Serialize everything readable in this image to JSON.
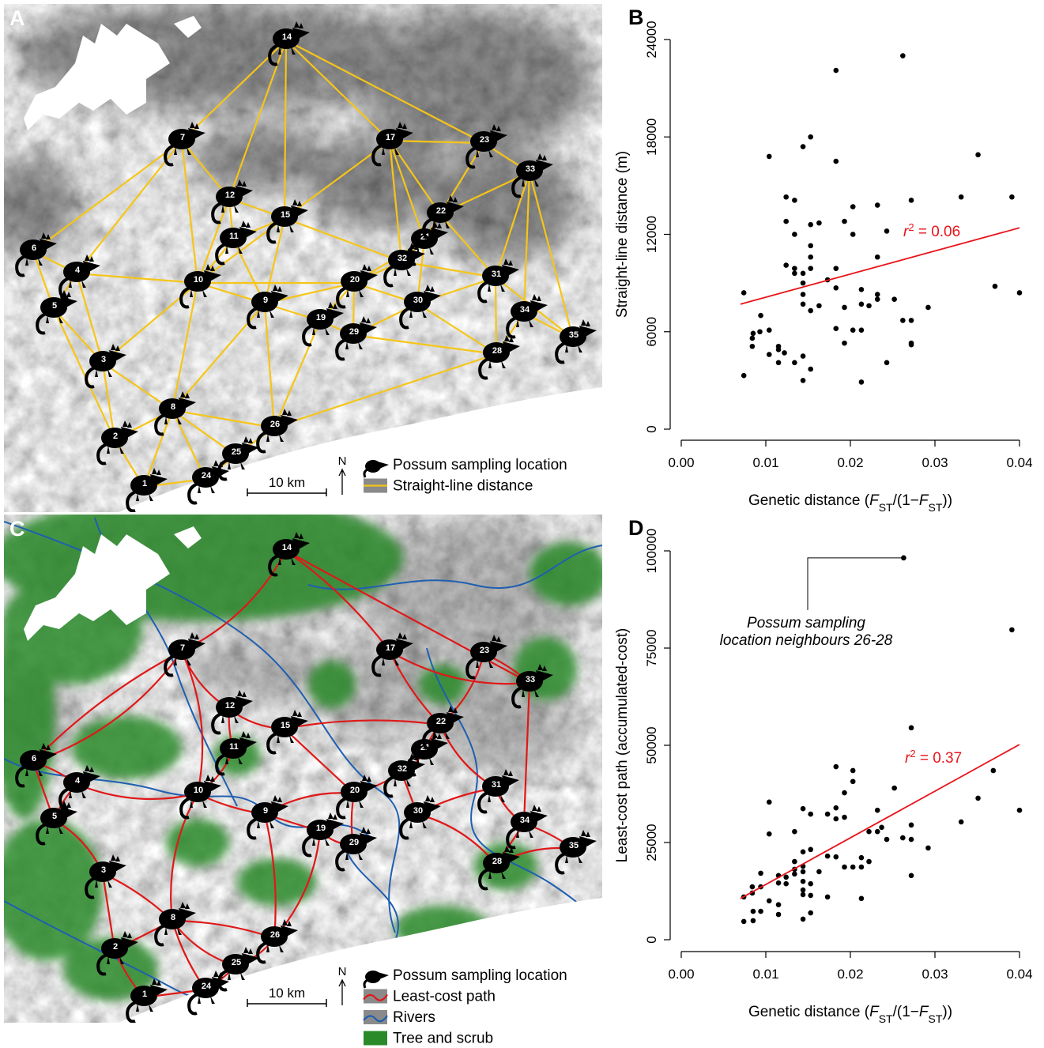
{
  "chart_data": [
    {
      "type": "scatter",
      "panel": "B",
      "ylabel": "Straight-line distance (m)",
      "xlabel": [
        {
          "text": "Genetic distance ("
        },
        {
          "text": "F",
          "style": "italic"
        },
        {
          "text": "ST",
          "style": "subscript"
        },
        {
          "text": "/(1−"
        },
        {
          "text": "F",
          "style": "italic"
        },
        {
          "text": "ST",
          "style": "subscript"
        },
        {
          "text": "))"
        }
      ],
      "color": "#000000",
      "x": [
        0.0074,
        0.0074,
        0.0094,
        0.0085,
        0.0084,
        0.0084,
        0.0093,
        0.0104,
        0.0104,
        0.0115,
        0.0115,
        0.0122,
        0.0115,
        0.0134,
        0.0144,
        0.0144,
        0.0153,
        0.0104,
        0.0144,
        0.0153,
        0.0183,
        0.0183,
        0.0134,
        0.0124,
        0.0124,
        0.0134,
        0.0153,
        0.0163,
        0.0153,
        0.0153,
        0.0124,
        0.0134,
        0.0134,
        0.0144,
        0.0153,
        0.0144,
        0.0144,
        0.0144,
        0.0153,
        0.0163,
        0.0173,
        0.0183,
        0.0183,
        0.0183,
        0.0193,
        0.0203,
        0.0203,
        0.0193,
        0.0193,
        0.0203,
        0.0213,
        0.0213,
        0.0213,
        0.0222,
        0.0232,
        0.0232,
        0.0232,
        0.0232,
        0.0243,
        0.0252,
        0.0243,
        0.0213,
        0.0262,
        0.0262,
        0.0272,
        0.0272,
        0.0272,
        0.0272,
        0.0292,
        0.0331,
        0.0351,
        0.0371,
        0.0391,
        0.04
      ],
      "values": [
        3300,
        8400,
        7000,
        5900,
        5600,
        5100,
        6000,
        6100,
        4600,
        5100,
        4900,
        4700,
        4100,
        4100,
        4500,
        3000,
        3700,
        16800,
        17400,
        18000,
        22100,
        16500,
        14100,
        14300,
        12800,
        12000,
        12600,
        12700,
        11300,
        10600,
        10100,
        9900,
        9600,
        9600,
        9900,
        9000,
        8300,
        7700,
        7300,
        7600,
        9200,
        9900,
        8700,
        6200,
        12800,
        13700,
        12000,
        7500,
        5300,
        6100,
        6100,
        7700,
        8600,
        7600,
        8300,
        8000,
        10600,
        13800,
        12200,
        8000,
        4100,
        2900,
        23000,
        6700,
        6700,
        5300,
        5200,
        14100,
        7500,
        14300,
        16900,
        8800,
        14300,
        8400
      ],
      "xlim": [
        0,
        0.04
      ],
      "ylim": [
        0,
        24000
      ],
      "xticks": [
        {
          "value": 0,
          "label": "0.00"
        },
        {
          "value": 0.01,
          "label": "0.01"
        },
        {
          "value": 0.02,
          "label": "0.02"
        },
        {
          "value": 0.03,
          "label": "0.03"
        },
        {
          "value": 0.04,
          "label": "0.04"
        }
      ],
      "yticks": [
        0,
        6000,
        12000,
        18000,
        24000
      ],
      "fit": {
        "color": "#e8141b",
        "x": [
          0.007,
          0.04
        ],
        "values": [
          7700,
          12400
        ],
        "label": {
          "var": "r",
          "exp": "2",
          "text": " = 0.06"
        }
      }
    },
    {
      "type": "scatter",
      "panel": "D",
      "ylabel": "Least-cost path (accumulated-cost)",
      "xlabel": [
        {
          "text": "Genetic distance ("
        },
        {
          "text": "F",
          "style": "italic"
        },
        {
          "text": "ST",
          "style": "subscript"
        },
        {
          "text": "/(1−"
        },
        {
          "text": "F",
          "style": "italic"
        },
        {
          "text": "ST",
          "style": "subscript"
        },
        {
          "text": "))"
        }
      ],
      "color": "#000000",
      "x": [
        0.0263,
        0.0391,
        0.0272,
        0.0183,
        0.0369,
        0.04,
        0.0351,
        0.0331,
        0.0252,
        0.0203,
        0.0203,
        0.0193,
        0.0183,
        0.0183,
        0.0193,
        0.0173,
        0.0232,
        0.0222,
        0.0232,
        0.0237,
        0.0243,
        0.0262,
        0.0272,
        0.0272,
        0.0272,
        0.0292,
        0.0104,
        0.0104,
        0.0134,
        0.0144,
        0.0153,
        0.0134,
        0.0144,
        0.0153,
        0.0173,
        0.0193,
        0.0203,
        0.0213,
        0.0213,
        0.0222,
        0.0134,
        0.0134,
        0.0124,
        0.0124,
        0.0115,
        0.0115,
        0.0144,
        0.0144,
        0.0144,
        0.0144,
        0.0153,
        0.0153,
        0.0144,
        0.0163,
        0.0213,
        0.0074,
        0.0074,
        0.0084,
        0.0084,
        0.0094,
        0.0094,
        0.0104,
        0.0094,
        0.0085,
        0.0085,
        0.0115,
        0.0115,
        0.0144,
        0.0153,
        0.0173,
        0.0183
      ],
      "values": [
        98200,
        79700,
        54500,
        44500,
        43500,
        33300,
        36400,
        30300,
        39000,
        43500,
        40700,
        37800,
        33900,
        31100,
        31500,
        32300,
        33300,
        27800,
        27800,
        28900,
        25800,
        26200,
        25800,
        29500,
        16500,
        23600,
        35400,
        27200,
        27800,
        33700,
        32300,
        20100,
        22600,
        23200,
        21500,
        18700,
        18700,
        21100,
        18700,
        20100,
        18100,
        16900,
        16100,
        14400,
        16500,
        14600,
        18900,
        17500,
        15000,
        12800,
        14400,
        11400,
        11600,
        17500,
        10600,
        4700,
        11000,
        13600,
        12000,
        13600,
        17100,
        10000,
        7300,
        7300,
        4900,
        9000,
        6500,
        5300,
        6900,
        11000,
        21300
      ],
      "xlim": [
        0,
        0.04
      ],
      "ylim": [
        0,
        100000
      ],
      "xticks": [
        {
          "value": 0,
          "label": "0.00"
        },
        {
          "value": 0.01,
          "label": "0.01"
        },
        {
          "value": 0.02,
          "label": "0.02"
        },
        {
          "value": 0.03,
          "label": "0.03"
        },
        {
          "value": 0.04,
          "label": "0.04"
        }
      ],
      "yticks": [
        0,
        25000,
        50000,
        75000,
        100000
      ],
      "fit": {
        "color": "#e8141b",
        "x": [
          0.007,
          0.04
        ],
        "values": [
          10600,
          50200
        ],
        "label": {
          "var": "r",
          "exp": "2",
          "text": " = 0.37"
        }
      },
      "annotation": [
        "Possum sampling",
        "location neighbours 26-28"
      ]
    }
  ],
  "sites": [
    "1",
    "2",
    "3",
    "4",
    "5",
    "6",
    "7",
    "8",
    "9",
    "10",
    "11",
    "12",
    "14",
    "15",
    "17",
    "19",
    "20",
    "21",
    "22",
    "23",
    "24",
    "25",
    "26",
    "28",
    "29",
    "30",
    "31",
    "32",
    "33",
    "34",
    "35"
  ],
  "maps": [
    {
      "panel": "A",
      "scale": "10 km",
      "north": "N",
      "legend": [
        "Possum sampling location",
        "Straight-line distance"
      ]
    },
    {
      "panel": "C",
      "scale": "10 km",
      "north": "N",
      "legend": [
        "Possum sampling location",
        "Least-cost path",
        "Rivers",
        "Tree and scrub"
      ]
    }
  ]
}
